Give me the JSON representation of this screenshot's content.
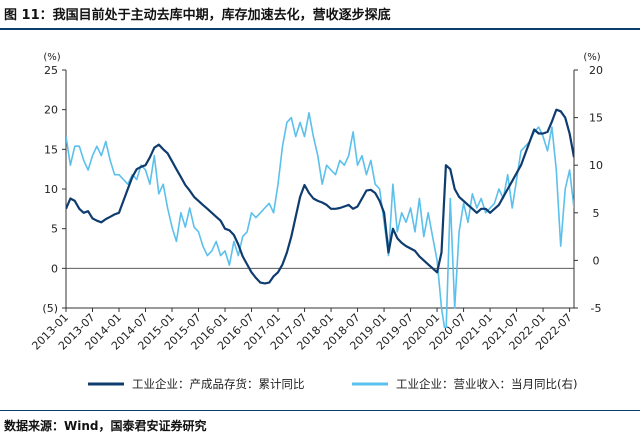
{
  "figure": {
    "title": "图 11：我国目前处于主动去库中期，库存加速去化，营收逐步探底",
    "source": "数据来源：Wind，国泰君安证券研究"
  },
  "chart_data": {
    "type": "line",
    "left_axis": {
      "unit": "(%)",
      "ylim": [
        -5,
        25
      ],
      "ticks": [
        25,
        20,
        15,
        10,
        5,
        0,
        -5
      ],
      "tick_labels": [
        "25",
        "20",
        "15",
        "10",
        "5",
        "0",
        "(5)"
      ],
      "negative_color": "#c00000"
    },
    "right_axis": {
      "unit": "(%)",
      "ylim": [
        -5,
        20
      ],
      "ticks": [
        20,
        15,
        10,
        5,
        0,
        -5
      ],
      "tick_labels": [
        "20",
        "15",
        "10",
        "5",
        "0",
        "-5"
      ]
    },
    "x_start": "2013-01",
    "x_end": "2022-08",
    "x_tick_labels": [
      "2013-01",
      "2013-07",
      "2014-01",
      "2014-07",
      "2015-01",
      "2015-07",
      "2016-01",
      "2016-07",
      "2017-01",
      "2017-07",
      "2018-01",
      "2018-07",
      "2019-01",
      "2019-07",
      "2020-01",
      "2020-07",
      "2021-01",
      "2021-07",
      "2022-01",
      "2022-07"
    ],
    "series": [
      {
        "name": "工业企业：产成品存货：累计同比",
        "axis": "left",
        "color": "#0f3c6e",
        "points": [
          [
            "2013-01",
            7.5
          ],
          [
            "2013-02",
            8.8
          ],
          [
            "2013-03",
            8.5
          ],
          [
            "2013-04",
            7.5
          ],
          [
            "2013-05",
            7.0
          ],
          [
            "2013-06",
            7.2
          ],
          [
            "2013-07",
            6.3
          ],
          [
            "2013-08",
            6.0
          ],
          [
            "2013-09",
            5.8
          ],
          [
            "2013-10",
            6.2
          ],
          [
            "2013-11",
            6.5
          ],
          [
            "2013-12",
            6.8
          ],
          [
            "2014-01",
            7.0
          ],
          [
            "2014-02",
            8.5
          ],
          [
            "2014-03",
            10.0
          ],
          [
            "2014-04",
            11.5
          ],
          [
            "2014-05",
            12.5
          ],
          [
            "2014-06",
            12.8
          ],
          [
            "2014-07",
            13.0
          ],
          [
            "2014-08",
            14.0
          ],
          [
            "2014-09",
            15.2
          ],
          [
            "2014-10",
            15.6
          ],
          [
            "2014-11",
            15.0
          ],
          [
            "2014-12",
            14.5
          ],
          [
            "2015-01",
            13.5
          ],
          [
            "2015-02",
            12.5
          ],
          [
            "2015-03",
            11.5
          ],
          [
            "2015-04",
            10.5
          ],
          [
            "2015-05",
            9.8
          ],
          [
            "2015-06",
            9.0
          ],
          [
            "2015-07",
            8.5
          ],
          [
            "2015-08",
            8.0
          ],
          [
            "2015-09",
            7.5
          ],
          [
            "2015-10",
            7.0
          ],
          [
            "2015-11",
            6.5
          ],
          [
            "2015-12",
            6.0
          ],
          [
            "2016-01",
            5.0
          ],
          [
            "2016-02",
            4.8
          ],
          [
            "2016-03",
            4.2
          ],
          [
            "2016-04",
            3.0
          ],
          [
            "2016-05",
            1.5
          ],
          [
            "2016-06",
            0.5
          ],
          [
            "2016-07",
            -0.5
          ],
          [
            "2016-08",
            -1.2
          ],
          [
            "2016-09",
            -1.8
          ],
          [
            "2016-10",
            -1.9
          ],
          [
            "2016-11",
            -1.8
          ],
          [
            "2016-12",
            -1.0
          ],
          [
            "2017-01",
            -0.5
          ],
          [
            "2017-02",
            0.5
          ],
          [
            "2017-03",
            2.0
          ],
          [
            "2017-04",
            4.0
          ],
          [
            "2017-05",
            6.5
          ],
          [
            "2017-06",
            9.0
          ],
          [
            "2017-07",
            10.5
          ],
          [
            "2017-08",
            9.5
          ],
          [
            "2017-09",
            8.8
          ],
          [
            "2017-10",
            8.5
          ],
          [
            "2017-11",
            8.3
          ],
          [
            "2017-12",
            8.0
          ],
          [
            "2018-01",
            7.5
          ],
          [
            "2018-02",
            7.5
          ],
          [
            "2018-03",
            7.6
          ],
          [
            "2018-04",
            7.8
          ],
          [
            "2018-05",
            8.0
          ],
          [
            "2018-06",
            7.5
          ],
          [
            "2018-07",
            7.8
          ],
          [
            "2018-08",
            8.8
          ],
          [
            "2018-09",
            9.8
          ],
          [
            "2018-10",
            9.9
          ],
          [
            "2018-11",
            9.5
          ],
          [
            "2018-12",
            8.5
          ],
          [
            "2019-01",
            7.0
          ],
          [
            "2019-02",
            2.0
          ],
          [
            "2019-03",
            5.0
          ],
          [
            "2019-04",
            3.8
          ],
          [
            "2019-05",
            3.2
          ],
          [
            "2019-06",
            2.8
          ],
          [
            "2019-07",
            2.5
          ],
          [
            "2019-08",
            2.2
          ],
          [
            "2019-09",
            1.5
          ],
          [
            "2019-10",
            1.0
          ],
          [
            "2019-11",
            0.5
          ],
          [
            "2019-12",
            0.0
          ],
          [
            "2020-01",
            -0.5
          ],
          [
            "2020-02",
            2.0
          ],
          [
            "2020-03",
            13.0
          ],
          [
            "2020-04",
            12.5
          ],
          [
            "2020-05",
            10.0
          ],
          [
            "2020-06",
            9.0
          ],
          [
            "2020-07",
            8.5
          ],
          [
            "2020-08",
            8.0
          ],
          [
            "2020-09",
            7.5
          ],
          [
            "2020-10",
            7.0
          ],
          [
            "2020-11",
            7.5
          ],
          [
            "2020-12",
            7.5
          ],
          [
            "2021-01",
            7.0
          ],
          [
            "2021-02",
            7.5
          ],
          [
            "2021-03",
            8.0
          ],
          [
            "2021-04",
            9.0
          ],
          [
            "2021-05",
            10.0
          ],
          [
            "2021-06",
            11.0
          ],
          [
            "2021-07",
            12.0
          ],
          [
            "2021-08",
            13.0
          ],
          [
            "2021-09",
            14.5
          ],
          [
            "2021-10",
            16.0
          ],
          [
            "2021-11",
            17.5
          ],
          [
            "2021-12",
            17.0
          ],
          [
            "2022-01",
            17.0
          ],
          [
            "2022-02",
            17.2
          ],
          [
            "2022-03",
            18.5
          ],
          [
            "2022-04",
            20.0
          ],
          [
            "2022-05",
            19.8
          ],
          [
            "2022-06",
            19.0
          ],
          [
            "2022-07",
            17.0
          ],
          [
            "2022-08",
            14.0
          ]
        ]
      },
      {
        "name": "工业企业：营业收入：当月同比(右)",
        "axis": "right",
        "color": "#5bc0eb",
        "points": [
          [
            "2013-01",
            13.0
          ],
          [
            "2013-02",
            10.0
          ],
          [
            "2013-03",
            12.0
          ],
          [
            "2013-04",
            12.0
          ],
          [
            "2013-05",
            10.5
          ],
          [
            "2013-06",
            9.5
          ],
          [
            "2013-07",
            11.0
          ],
          [
            "2013-08",
            12.0
          ],
          [
            "2013-09",
            11.0
          ],
          [
            "2013-10",
            12.5
          ],
          [
            "2013-11",
            10.5
          ],
          [
            "2013-12",
            9.0
          ],
          [
            "2014-01",
            9.0
          ],
          [
            "2014-02",
            8.5
          ],
          [
            "2014-03",
            8.0
          ],
          [
            "2014-04",
            9.0
          ],
          [
            "2014-05",
            8.5
          ],
          [
            "2014-06",
            10.0
          ],
          [
            "2014-07",
            9.5
          ],
          [
            "2014-08",
            8.0
          ],
          [
            "2014-09",
            11.0
          ],
          [
            "2014-10",
            7.0
          ],
          [
            "2014-11",
            8.0
          ],
          [
            "2014-12",
            5.5
          ],
          [
            "2015-01",
            3.5
          ],
          [
            "2015-02",
            2.0
          ],
          [
            "2015-03",
            5.0
          ],
          [
            "2015-04",
            3.5
          ],
          [
            "2015-05",
            5.5
          ],
          [
            "2015-06",
            3.5
          ],
          [
            "2015-07",
            3.0
          ],
          [
            "2015-08",
            1.5
          ],
          [
            "2015-09",
            0.5
          ],
          [
            "2015-10",
            1.0
          ],
          [
            "2015-11",
            2.0
          ],
          [
            "2015-12",
            0.5
          ],
          [
            "2016-01",
            1.0
          ],
          [
            "2016-02",
            -0.5
          ],
          [
            "2016-03",
            2.0
          ],
          [
            "2016-04",
            0.5
          ],
          [
            "2016-05",
            2.5
          ],
          [
            "2016-06",
            3.0
          ],
          [
            "2016-07",
            5.0
          ],
          [
            "2016-08",
            4.5
          ],
          [
            "2016-09",
            5.0
          ],
          [
            "2016-10",
            5.5
          ],
          [
            "2016-11",
            6.0
          ],
          [
            "2016-12",
            5.0
          ],
          [
            "2017-01",
            8.0
          ],
          [
            "2017-02",
            12.0
          ],
          [
            "2017-03",
            14.5
          ],
          [
            "2017-04",
            15.0
          ],
          [
            "2017-05",
            13.0
          ],
          [
            "2017-06",
            14.5
          ],
          [
            "2017-07",
            13.0
          ],
          [
            "2017-08",
            15.5
          ],
          [
            "2017-09",
            13.0
          ],
          [
            "2017-10",
            11.0
          ],
          [
            "2017-11",
            8.0
          ],
          [
            "2017-12",
            10.0
          ],
          [
            "2018-01",
            9.5
          ],
          [
            "2018-02",
            9.0
          ],
          [
            "2018-03",
            10.5
          ],
          [
            "2018-04",
            10.0
          ],
          [
            "2018-05",
            11.0
          ],
          [
            "2018-06",
            13.5
          ],
          [
            "2018-07",
            10.0
          ],
          [
            "2018-08",
            11.0
          ],
          [
            "2018-09",
            9.0
          ],
          [
            "2018-10",
            10.5
          ],
          [
            "2018-11",
            8.0
          ],
          [
            "2018-12",
            7.5
          ],
          [
            "2019-01",
            4.0
          ],
          [
            "2019-02",
            0.5
          ],
          [
            "2019-03",
            8.0
          ],
          [
            "2019-04",
            3.0
          ],
          [
            "2019-05",
            5.0
          ],
          [
            "2019-06",
            4.0
          ],
          [
            "2019-07",
            5.5
          ],
          [
            "2019-08",
            3.0
          ],
          [
            "2019-09",
            6.5
          ],
          [
            "2019-10",
            2.5
          ],
          [
            "2019-11",
            5.0
          ],
          [
            "2019-12",
            2.5
          ],
          [
            "2020-01",
            0.0
          ],
          [
            "2020-02",
            -5.0
          ],
          [
            "2020-03",
            -8.0
          ],
          [
            "2020-04",
            6.5
          ],
          [
            "2020-05",
            -5.0
          ],
          [
            "2020-06",
            3.0
          ],
          [
            "2020-07",
            6.0
          ],
          [
            "2020-08",
            4.0
          ],
          [
            "2020-09",
            7.0
          ],
          [
            "2020-10",
            5.5
          ],
          [
            "2020-11",
            6.5
          ],
          [
            "2020-12",
            5.0
          ],
          [
            "2021-01",
            5.5
          ],
          [
            "2021-02",
            6.0
          ],
          [
            "2021-03",
            7.5
          ],
          [
            "2021-04",
            6.5
          ],
          [
            "2021-05",
            9.0
          ],
          [
            "2021-06",
            5.5
          ],
          [
            "2021-07",
            8.5
          ],
          [
            "2021-08",
            11.5
          ],
          [
            "2021-09",
            12.0
          ],
          [
            "2021-10",
            12.5
          ],
          [
            "2021-11",
            13.5
          ],
          [
            "2021-12",
            14.0
          ],
          [
            "2022-01",
            13.0
          ],
          [
            "2022-02",
            11.5
          ],
          [
            "2022-03",
            14.0
          ],
          [
            "2022-04",
            9.5
          ],
          [
            "2022-05",
            1.5
          ],
          [
            "2022-06",
            7.5
          ],
          [
            "2022-07",
            9.5
          ],
          [
            "2022-08",
            5.5
          ]
        ]
      }
    ]
  }
}
